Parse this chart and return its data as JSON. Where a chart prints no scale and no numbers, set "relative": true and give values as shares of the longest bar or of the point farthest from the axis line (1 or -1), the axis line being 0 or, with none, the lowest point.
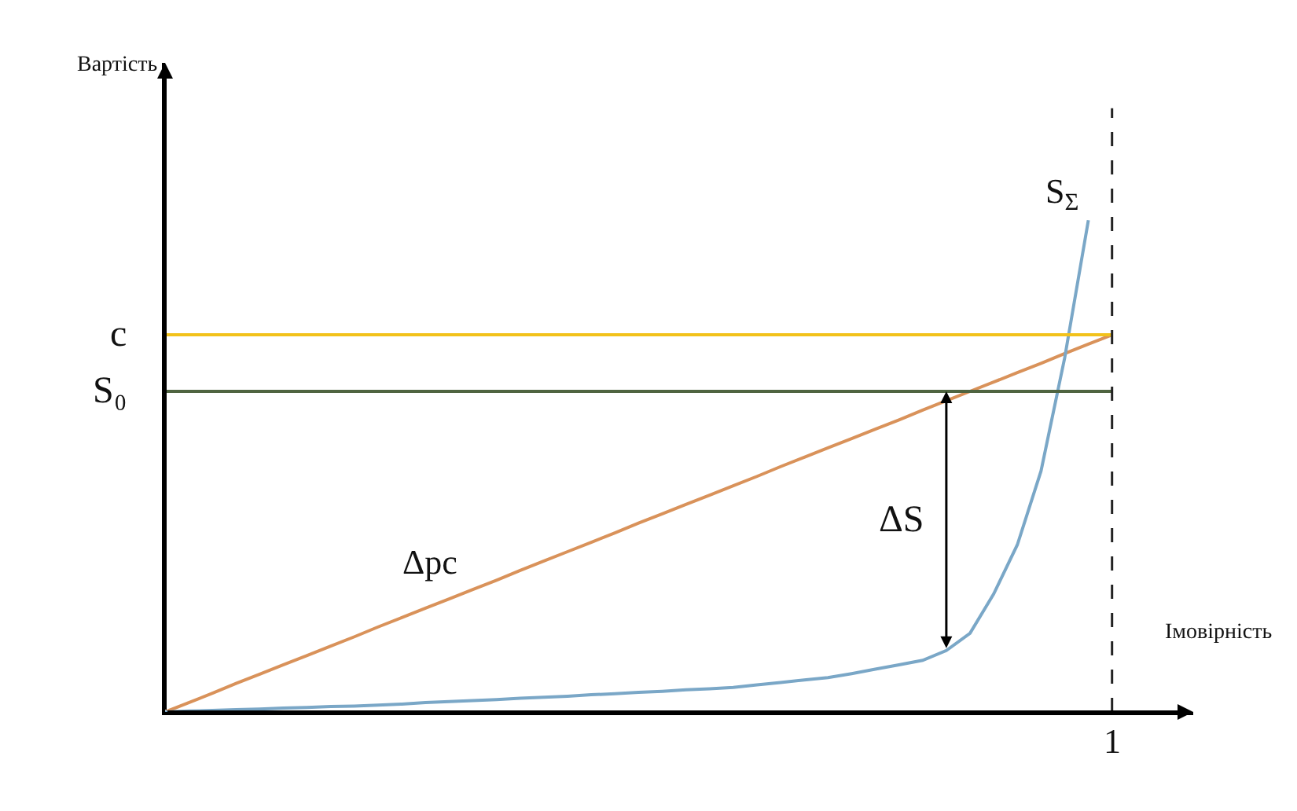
{
  "chart_data": {
    "type": "line",
    "relative": true,
    "xlabel": "Імовірність",
    "categories": [
      null,
      null,
      null,
      null,
      null,
      null,
      null,
      null,
      null,
      null,
      null,
      null,
      null,
      null,
      null,
      null,
      null,
      null,
      null,
      null,
      null,
      null,
      null,
      null,
      null,
      null,
      null,
      null,
      null,
      null,
      null,
      null,
      null,
      null,
      null,
      null,
      null,
      null,
      null,
      null,
      null,
      null,
      null,
      null
    ],
    "series": [
      {
        "name": "Δpc",
        "color": "#d9925a",
        "values": [
          0,
          0.019,
          0.038,
          0.058,
          0.077,
          0.096,
          0.115,
          0.134,
          0.153,
          0.173,
          0.192,
          0.211,
          0.23,
          0.249,
          0.268,
          0.288,
          0.307,
          0.326,
          0.345,
          0.364,
          0.384,
          0.403,
          0.422,
          0.441,
          0.46,
          0.479,
          0.499,
          0.518,
          0.537,
          0.556,
          0.575,
          0.594,
          0.614,
          0.633,
          0.652,
          0.671,
          0.69,
          0.709,
          0.729,
          0.748,
          0.767,
          null,
          null,
          null
        ]
      },
      {
        "name": "S$_{Σ}$",
        "color": "#7aa7c7",
        "values": [
          0,
          0.002,
          0.003,
          0.005,
          0.006,
          0.008,
          0.009,
          0.011,
          0.012,
          0.014,
          0.016,
          0.019,
          0.021,
          0.023,
          0.025,
          0.028,
          0.03,
          0.032,
          0.035,
          0.037,
          0.04,
          0.042,
          0.045,
          0.047,
          0.05,
          0.055,
          0.06,
          0.065,
          0.07,
          0.078,
          0.087,
          0.096,
          0.105,
          0.125,
          0.16,
          0.24,
          0.34,
          0.49,
          0.72,
          1.0,
          null,
          null,
          null,
          null
        ]
      }
    ],
    "ref_lines": [
      {
        "axis": "y",
        "value": 0.767,
        "label": "c",
        "color": "#f2c21b"
      },
      {
        "axis": "y",
        "value": 0.652,
        "label": "S₀",
        "color": "#4f6440"
      },
      {
        "axis": "x",
        "label": "1",
        "color": "#222222",
        "line_style": "dashed"
      }
    ],
    "annotations": [
      "ΔS",
      "Вартість"
    ],
    "legend": false,
    "marker": "none"
  }
}
